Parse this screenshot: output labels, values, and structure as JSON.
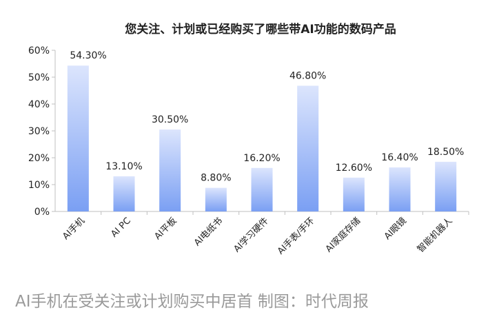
{
  "chart_data": {
    "type": "bar",
    "title": "您关注、计划或已经购买了哪些带AI功能的数码产品",
    "xlabel": "",
    "ylabel": "",
    "categories": [
      "AI手机",
      "AI PC",
      "AI平板",
      "AI电纸书",
      "AI学习硬件",
      "AI手表/手环",
      "AI家庭存储",
      "AI眼镜",
      "智能机器人"
    ],
    "values": [
      54.3,
      13.1,
      30.5,
      8.8,
      16.2,
      46.8,
      12.6,
      16.4,
      18.5
    ],
    "value_labels": [
      "54.30%",
      "13.10%",
      "30.50%",
      "8.80%",
      "16.20%",
      "46.80%",
      "12.60%",
      "16.40%",
      "18.50%"
    ],
    "y_ticks": [
      "0%",
      "10%",
      "20%",
      "30%",
      "40%",
      "50%",
      "60%"
    ],
    "ylim": [
      0,
      60
    ],
    "grid": false,
    "colors": {
      "bar_top": "#dce5fd",
      "bar_bottom": "#7a9ff3",
      "axis": "#bfbfbf",
      "text": "#222222"
    }
  },
  "caption": "AI手机在受关注或计划购买中居首 制图：时代周报"
}
